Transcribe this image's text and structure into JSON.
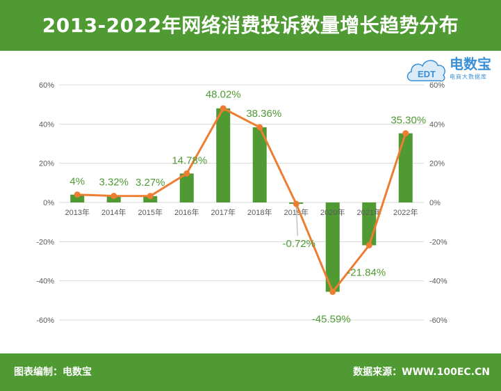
{
  "header": {
    "title": "2013-2022年网络消费投诉数量增长趋势分布"
  },
  "footer": {
    "left": "图表编制：电数宝",
    "right": "数据来源：WWW.100EC.CN"
  },
  "logo": {
    "mark": "EDT",
    "brand": "电数宝",
    "sub": "电商大数据库",
    "color": "#3a8fd6"
  },
  "colors": {
    "bar": "#4f9a33",
    "line": "#ed7d31",
    "label": "#4f9a33",
    "header": "#4f9a33"
  },
  "chart_data": {
    "type": "bar",
    "overlay": "line",
    "categories": [
      "2013年",
      "2014年",
      "2015年",
      "2016年",
      "2017年",
      "2018年",
      "2019年",
      "2020年",
      "2021年",
      "2022年"
    ],
    "values": [
      4,
      3.32,
      3.27,
      14.78,
      48.02,
      38.36,
      -0.72,
      -45.59,
      -21.84,
      35.3
    ],
    "data_labels": [
      "4%",
      "3.32%",
      "3.27%",
      "14.78%",
      "48.02%",
      "38.36%",
      "-0.72%",
      "-45.59%",
      "-21.84%",
      "35.30%"
    ],
    "y_ticks": [
      "60%",
      "40%",
      "20%",
      "0%",
      "-20%",
      "-40%",
      "-60%"
    ],
    "y2_ticks": [
      "60%",
      "40%",
      "20%",
      "0%",
      "-20%",
      "-40%",
      "-60%"
    ],
    "ylim": [
      -60,
      60
    ],
    "grid": true,
    "legend": "none"
  }
}
